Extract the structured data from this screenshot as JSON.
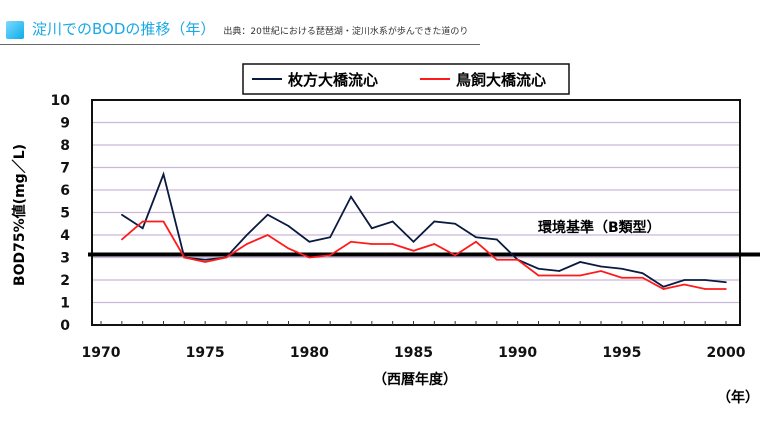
{
  "header": {
    "title": "淀川でのBODの推移（年）",
    "source": "出典：20世紀における琵琶湖・淀川水系が歩んできた道のり",
    "icon": "square-icon",
    "accent": "#19a9e6"
  },
  "chart_data": {
    "type": "line",
    "ylabel": "BOD75%値(mg／L)",
    "xlabel": "（西暦年度）",
    "xunit": "（年）",
    "ylim": [
      0,
      10
    ],
    "xlim": [
      1970,
      2000
    ],
    "yticks": [
      "0",
      "1",
      "2",
      "3",
      "4",
      "5",
      "6",
      "7",
      "8",
      "9",
      "10"
    ],
    "xticks": [
      "1970",
      "1975",
      "1980",
      "1985",
      "1990",
      "1995",
      "2000"
    ],
    "grid": true,
    "legend": "top-center",
    "x": [
      1971,
      1972,
      1973,
      1974,
      1975,
      1976,
      1977,
      1978,
      1979,
      1980,
      1981,
      1982,
      1983,
      1984,
      1985,
      1986,
      1987,
      1988,
      1989,
      1990,
      1991,
      1992,
      1993,
      1994,
      1995,
      1996,
      1997,
      1998,
      1999,
      2000
    ],
    "series": [
      {
        "name": "枚方大橋流心",
        "color": "#0a1a40",
        "values": [
          4.9,
          4.3,
          6.7,
          3.0,
          2.9,
          3.0,
          4.0,
          4.9,
          4.4,
          3.7,
          3.9,
          5.7,
          4.3,
          4.6,
          3.7,
          4.6,
          4.5,
          3.9,
          3.8,
          2.9,
          2.5,
          2.4,
          2.8,
          2.6,
          2.5,
          2.3,
          1.7,
          2.0,
          2.0,
          1.9
        ]
      },
      {
        "name": "鳥飼大橋流心",
        "color": "#ff1a1a",
        "values": [
          3.8,
          4.6,
          4.6,
          3.0,
          2.8,
          3.0,
          3.6,
          4.0,
          3.4,
          3.0,
          3.1,
          3.7,
          3.6,
          3.6,
          3.3,
          3.6,
          3.1,
          3.7,
          2.9,
          2.9,
          2.2,
          2.2,
          2.2,
          2.4,
          2.1,
          2.1,
          1.6,
          1.8,
          1.6,
          1.6
        ]
      }
    ],
    "annotations": [
      {
        "label": "環境基準（B類型）",
        "value": 3
      }
    ]
  }
}
